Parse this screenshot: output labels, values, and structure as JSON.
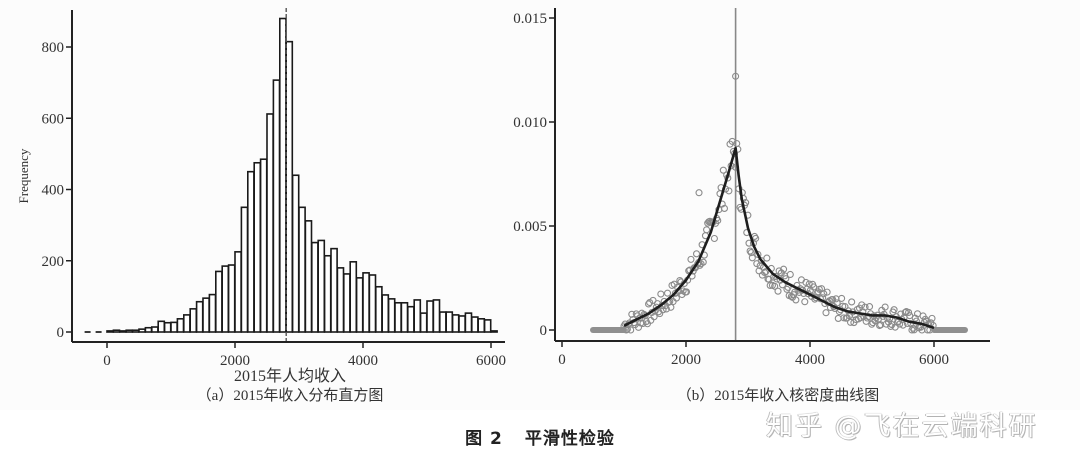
{
  "figure": {
    "caption_number": "图 2",
    "caption_title": "平滑性检验",
    "watermark": "知乎 @飞在云端科研"
  },
  "chart_data": [
    {
      "type": "bar",
      "id": "a",
      "subtitle": "（a）2015年收入分布直方图",
      "title": "",
      "xlabel": "2015年人均收入",
      "ylabel": "Frequency",
      "xlim": [
        -500,
        6200
      ],
      "ylim": [
        -50,
        900
      ],
      "xticks": [
        0,
        2000,
        4000,
        6000
      ],
      "yticks": [
        0,
        200,
        400,
        600,
        800
      ],
      "bin_width": 100,
      "bin_starts": [
        0,
        100,
        200,
        300,
        400,
        500,
        600,
        700,
        800,
        900,
        1000,
        1100,
        1200,
        1300,
        1400,
        1500,
        1600,
        1700,
        1800,
        1900,
        2000,
        2100,
        2200,
        2300,
        2400,
        2500,
        2600,
        2700,
        2800,
        2900,
        3000,
        3100,
        3200,
        3300,
        3400,
        3500,
        3600,
        3700,
        3800,
        3900,
        4000,
        4100,
        4200,
        4300,
        4400,
        4500,
        4600,
        4700,
        4800,
        4900,
        5000,
        5100,
        5200,
        5300,
        5400,
        5500,
        5600,
        5700,
        5800,
        5900,
        6000
      ],
      "values": [
        3,
        5,
        3,
        5,
        5,
        8,
        12,
        14,
        30,
        26,
        27,
        37,
        48,
        65,
        85,
        95,
        105,
        170,
        185,
        188,
        225,
        350,
        450,
        475,
        485,
        612,
        707,
        880,
        815,
        440,
        350,
        312,
        251,
        257,
        214,
        234,
        180,
        163,
        197,
        152,
        166,
        160,
        127,
        104,
        93,
        82,
        82,
        71,
        90,
        53,
        87,
        90,
        56,
        56,
        48,
        45,
        53,
        42,
        37,
        34,
        3
      ],
      "cutoff_line_x": 2800,
      "cutoff_line_style": "dashed",
      "dashed_baseline": [
        -350,
        0
      ],
      "grid": false
    },
    {
      "type": "scatter",
      "id": "b",
      "subtitle": "（b）2015年收入核密度曲线图",
      "title": "",
      "xlabel": "",
      "ylabel": "",
      "xlim": [
        -100,
        6850
      ],
      "ylim": [
        -0.0002,
        0.0155
      ],
      "xticks": [
        0,
        2000,
        4000,
        6000
      ],
      "yticks": [
        0,
        0.005,
        0.01,
        0.015
      ],
      "ytick_labels": [
        "0",
        "0.005",
        "0.010",
        "0.015"
      ],
      "cutoff_line_x": 2800,
      "fit_curve": {
        "x": [
          1000,
          1200,
          1400,
          1600,
          1800,
          2000,
          2200,
          2400,
          2500,
          2600,
          2700,
          2800,
          2850,
          2900,
          3000,
          3100,
          3200,
          3400,
          3600,
          3800,
          4000,
          4200,
          4400,
          4600,
          4800,
          5000,
          5200,
          5400,
          5600,
          5800,
          6000
        ],
        "y": [
          0.0002,
          0.0005,
          0.0008,
          0.0012,
          0.0017,
          0.0024,
          0.0033,
          0.0047,
          0.0057,
          0.0067,
          0.0077,
          0.00875,
          0.0074,
          0.0063,
          0.0049,
          0.004,
          0.0034,
          0.0027,
          0.0023,
          0.002,
          0.0017,
          0.0014,
          0.0011,
          0.0009,
          0.0008,
          0.0007,
          0.0007,
          0.0006,
          0.0004,
          0.0003,
          0.0001
        ]
      },
      "zero_segments": [
        [
          500,
          1000
        ],
        [
          6000,
          6500
        ]
      ],
      "outliers": [
        {
          "x": 2800,
          "y": 0.0122
        },
        {
          "x": 2210,
          "y": 0.0066
        }
      ],
      "grid": false
    }
  ]
}
